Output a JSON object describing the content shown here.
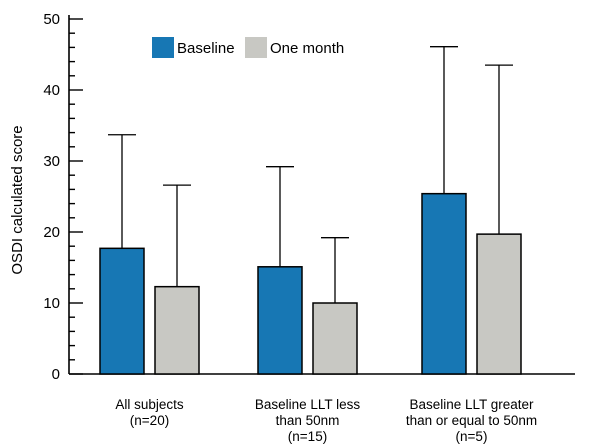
{
  "chart_data": {
    "type": "bar",
    "title": "",
    "xlabel": "",
    "ylabel": "OSDI calculated score",
    "ylim": [
      0,
      50
    ],
    "yticks": [
      0,
      10,
      20,
      30,
      40,
      50
    ],
    "grid": false,
    "legend_position": "top-left",
    "categories": [
      [
        "All subjects",
        "(n=20)"
      ],
      [
        "Baseline LLT less",
        "than 50nm",
        "(n=15)"
      ],
      [
        "Baseline LLT greater",
        "than or equal to 50nm",
        "(n=5)"
      ]
    ],
    "series": [
      {
        "name": "Baseline",
        "color": "#1777b4",
        "values": [
          17.7,
          15.1,
          25.4
        ],
        "error": [
          16.0,
          14.1,
          20.7
        ]
      },
      {
        "name": "One month",
        "color": "#c8c8c3",
        "values": [
          12.3,
          10.0,
          19.7
        ],
        "error": [
          14.3,
          9.2,
          23.8
        ]
      }
    ]
  }
}
